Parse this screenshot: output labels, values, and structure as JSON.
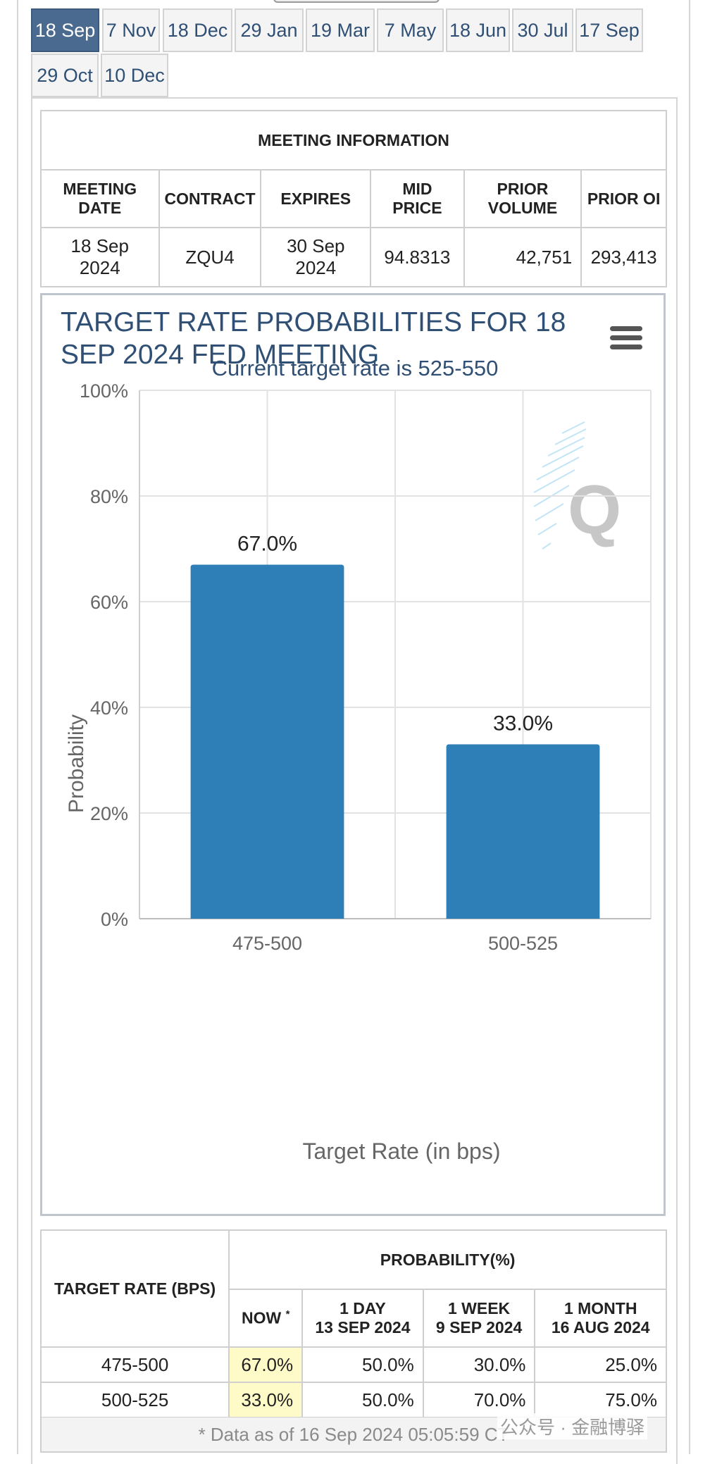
{
  "tabs": [
    "18 Sep",
    "7 Nov",
    "18 Dec",
    "29 Jan",
    "19 Mar",
    "7 May",
    "18 Jun",
    "30 Jul",
    "17 Sep",
    "29 Oct",
    "10 Dec"
  ],
  "active_tab": "18 Sep",
  "meeting_info": {
    "header": "MEETING INFORMATION",
    "columns": [
      "MEETING DATE",
      "CONTRACT",
      "EXPIRES",
      "MID PRICE",
      "PRIOR VOLUME",
      "PRIOR OI"
    ],
    "row": [
      "18 Sep 2024",
      "ZQU4",
      "30 Sep 2024",
      "94.8313",
      "42,751",
      "293,413"
    ]
  },
  "chart": {
    "menu_icon": "hamburger-menu-icon",
    "watermark_icon": "q-logo-icon"
  },
  "chart_data": {
    "type": "bar",
    "title": "TARGET RATE PROBABILITIES FOR 18 SEP 2024 FED MEETING",
    "subtitle": "Current target rate is 525-550",
    "xlabel": "Target Rate (in bps)",
    "ylabel": "Probability",
    "categories": [
      "475-500",
      "500-525"
    ],
    "values": [
      67.0,
      33.0
    ],
    "data_labels": [
      "67.0%",
      "33.0%"
    ],
    "ylim": [
      0,
      100
    ],
    "yticks": [
      0,
      20,
      40,
      60,
      80,
      100
    ],
    "ytick_labels": [
      "0%",
      "20%",
      "40%",
      "60%",
      "80%",
      "100%"
    ],
    "grid": true,
    "bar_color": "#2e7fb8"
  },
  "probability_table": {
    "row_header": "TARGET RATE (BPS)",
    "group_header": "PROBABILITY(%)",
    "now_label": "NOW",
    "now_mark": "*",
    "columns": [
      {
        "line1": "1 DAY",
        "line2": "13 SEP 2024"
      },
      {
        "line1": "1 WEEK",
        "line2": "9 SEP 2024"
      },
      {
        "line1": "1 MONTH",
        "line2": "16 AUG 2024"
      }
    ],
    "rows": [
      {
        "rate": "475-500",
        "now": "67.0%",
        "day": "50.0%",
        "week": "30.0%",
        "month": "25.0%"
      },
      {
        "rate": "500-525",
        "now": "33.0%",
        "day": "50.0%",
        "week": "70.0%",
        "month": "75.0%"
      }
    ],
    "footnote": "* Data as of 16 Sep 2024 05:05:59 CT"
  },
  "watermark_text": "公众号 · 金融博驿"
}
